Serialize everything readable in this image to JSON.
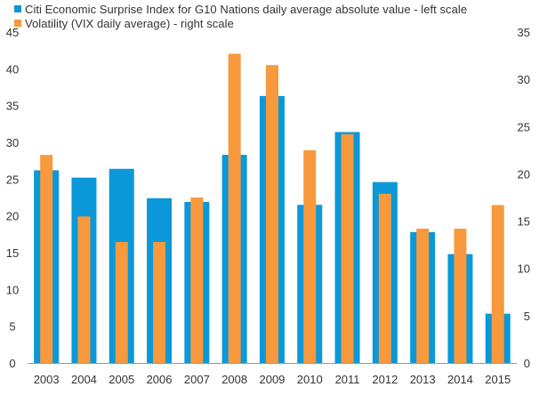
{
  "chart_data": {
    "type": "bar",
    "categories": [
      "2003",
      "2004",
      "2005",
      "2006",
      "2007",
      "2008",
      "2009",
      "2010",
      "2011",
      "2012",
      "2013",
      "2014",
      "2015"
    ],
    "series": [
      {
        "name": "Citi Economic Surprise Index for G10 Nations daily average absolute value - left scale",
        "axis": "left",
        "color": "#0a98d8",
        "values": [
          26.2,
          25.2,
          26.4,
          22.4,
          21.9,
          28.3,
          36.3,
          21.5,
          31.4,
          24.6,
          17.8,
          14.8,
          6.7
        ]
      },
      {
        "name": "Volatility (VIX daily average) - right scale",
        "axis": "right",
        "color": "#f7993c",
        "values": [
          22.0,
          15.5,
          12.8,
          12.8,
          17.5,
          32.7,
          31.5,
          22.5,
          24.2,
          17.9,
          14.2,
          14.2,
          16.7
        ]
      }
    ],
    "left_axis": {
      "min": 0,
      "max": 45,
      "ticks": [
        "0",
        "5",
        "10",
        "15",
        "20",
        "25",
        "30",
        "35",
        "40",
        "45"
      ]
    },
    "right_axis": {
      "min": 0,
      "max": 35,
      "ticks": [
        "0",
        "5",
        "10",
        "15",
        "20",
        "25",
        "30",
        "35"
      ]
    },
    "legend_position": "top-left",
    "grid": false,
    "title": "",
    "xlabel": "",
    "ylabel": ""
  }
}
